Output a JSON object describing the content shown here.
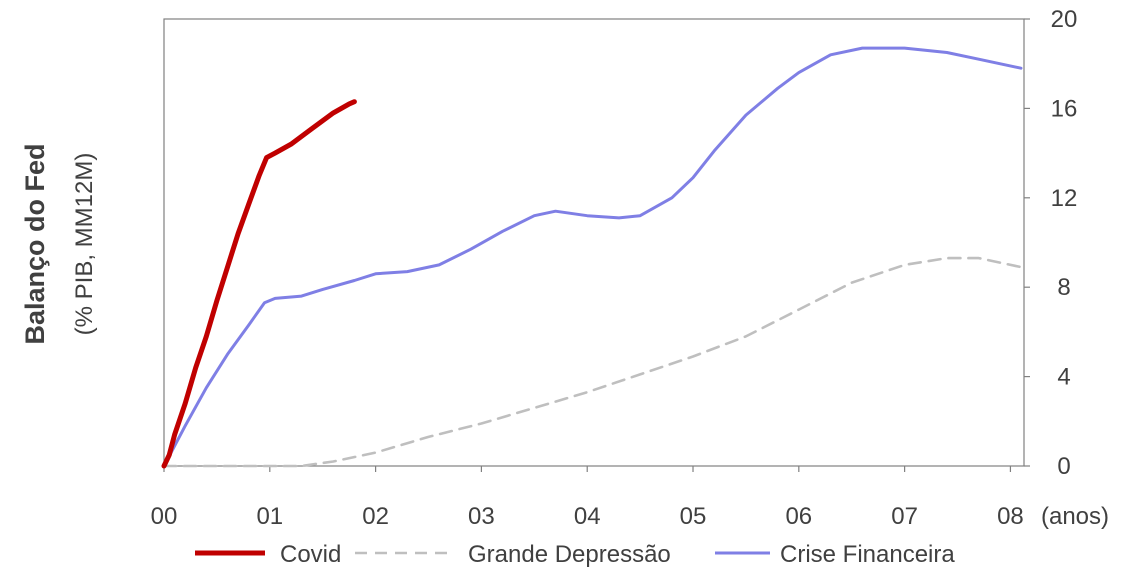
{
  "chart_data": {
    "type": "line",
    "ylabel": "Balanço do Fed",
    "ylabel_sub": "(% PIB, MM12M)",
    "x_unit_label": "(anos)",
    "x_ticks": [
      "00",
      "01",
      "02",
      "03",
      "04",
      "05",
      "06",
      "07",
      "08"
    ],
    "xlim": [
      0,
      8.1
    ],
    "y_ticks": [
      "0",
      "4",
      "8",
      "12",
      "16",
      "20"
    ],
    "ylim": [
      0,
      20
    ],
    "y_axis_side": "right",
    "grid": false,
    "legend_position": "bottom",
    "series": [
      {
        "name": "Covid",
        "color": "#c00000",
        "style": "solid-thick",
        "points": [
          [
            0.0,
            0.0
          ],
          [
            0.05,
            0.5
          ],
          [
            0.1,
            1.4
          ],
          [
            0.2,
            2.8
          ],
          [
            0.3,
            4.4
          ],
          [
            0.4,
            5.8
          ],
          [
            0.5,
            7.4
          ],
          [
            0.6,
            8.9
          ],
          [
            0.7,
            10.4
          ],
          [
            0.8,
            11.7
          ],
          [
            0.9,
            13.0
          ],
          [
            0.97,
            13.8
          ],
          [
            1.05,
            14.0
          ],
          [
            1.2,
            14.4
          ],
          [
            1.4,
            15.1
          ],
          [
            1.6,
            15.8
          ],
          [
            1.75,
            16.2
          ],
          [
            1.8,
            16.3
          ]
        ]
      },
      {
        "name": "Grande Depressão",
        "color": "#bfbfbf",
        "style": "dashed",
        "points": [
          [
            0.0,
            0.0
          ],
          [
            0.5,
            0.0
          ],
          [
            1.0,
            0.0
          ],
          [
            1.3,
            0.0
          ],
          [
            1.6,
            0.2
          ],
          [
            2.0,
            0.6
          ],
          [
            2.5,
            1.3
          ],
          [
            3.0,
            1.9
          ],
          [
            3.5,
            2.6
          ],
          [
            4.0,
            3.3
          ],
          [
            4.5,
            4.1
          ],
          [
            5.0,
            4.9
          ],
          [
            5.5,
            5.8
          ],
          [
            6.0,
            7.0
          ],
          [
            6.5,
            8.2
          ],
          [
            7.0,
            9.0
          ],
          [
            7.4,
            9.3
          ],
          [
            7.7,
            9.3
          ],
          [
            8.1,
            8.9
          ]
        ]
      },
      {
        "name": "Crise Financeira",
        "color": "#7f7fe5",
        "style": "solid",
        "points": [
          [
            0.0,
            0.0
          ],
          [
            0.2,
            1.8
          ],
          [
            0.4,
            3.5
          ],
          [
            0.6,
            5.0
          ],
          [
            0.8,
            6.3
          ],
          [
            0.95,
            7.3
          ],
          [
            1.05,
            7.5
          ],
          [
            1.3,
            7.6
          ],
          [
            1.5,
            7.9
          ],
          [
            1.8,
            8.3
          ],
          [
            2.0,
            8.6
          ],
          [
            2.3,
            8.7
          ],
          [
            2.6,
            9.0
          ],
          [
            2.9,
            9.7
          ],
          [
            3.2,
            10.5
          ],
          [
            3.5,
            11.2
          ],
          [
            3.7,
            11.4
          ],
          [
            4.0,
            11.2
          ],
          [
            4.3,
            11.1
          ],
          [
            4.5,
            11.2
          ],
          [
            4.8,
            12.0
          ],
          [
            5.0,
            12.9
          ],
          [
            5.2,
            14.1
          ],
          [
            5.5,
            15.7
          ],
          [
            5.8,
            16.9
          ],
          [
            6.0,
            17.6
          ],
          [
            6.3,
            18.4
          ],
          [
            6.6,
            18.7
          ],
          [
            7.0,
            18.7
          ],
          [
            7.4,
            18.5
          ],
          [
            7.7,
            18.2
          ],
          [
            8.1,
            17.8
          ]
        ]
      }
    ]
  }
}
